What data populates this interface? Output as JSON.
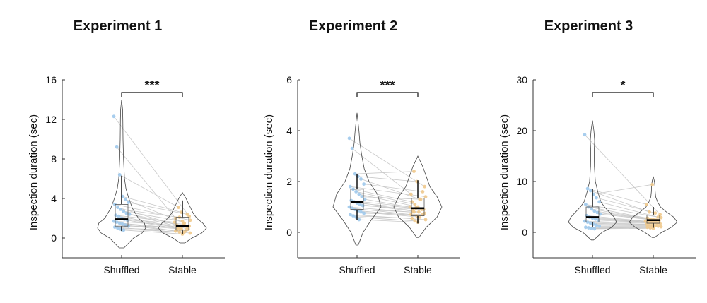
{
  "colors": {
    "shuffled": "#9ec9ec",
    "stable": "#f0c98c",
    "pair_line": "#c9c9c9",
    "axis": "#333333",
    "violin": "#444444",
    "median": "#000000"
  },
  "chart_data": [
    {
      "type": "violin-box-paired",
      "title": "Experiment 1",
      "ylabel": "Inspection duration (sec)",
      "xlabel": "",
      "categories": [
        "Shuffled",
        "Stable"
      ],
      "ylim": [
        -2,
        16
      ],
      "yticks": [
        0,
        4,
        8,
        12,
        16
      ],
      "grid": false,
      "significance": "***",
      "groups": [
        {
          "name": "Shuffled",
          "violin_range": [
            -1,
            14
          ],
          "violin_density": [
            [
              -1,
              0.1
            ],
            [
              0,
              0.5
            ],
            [
              0.5,
              0.85
            ],
            [
              1,
              1
            ],
            [
              1.5,
              0.95
            ],
            [
              2,
              0.7
            ],
            [
              3,
              0.45
            ],
            [
              4,
              0.3
            ],
            [
              5,
              0.18
            ],
            [
              6,
              0.12
            ],
            [
              8,
              0.08
            ],
            [
              10,
              0.06
            ],
            [
              12,
              0.05
            ],
            [
              13,
              0.04
            ],
            [
              14,
              0.0
            ]
          ],
          "box": {
            "q1": 1.2,
            "median": 1.9,
            "q3": 3.4,
            "whisker_low": 0.7,
            "whisker_high": 6.3
          },
          "points": [
            12.3,
            9.2,
            6.4,
            4.2,
            3.9,
            3.6,
            3.4,
            3.1,
            2.9,
            2.7,
            2.5,
            2.4,
            2.3,
            2.2,
            2.0,
            1.9,
            1.8,
            1.7,
            1.6,
            1.5,
            1.4,
            1.3,
            1.2,
            1.1,
            1.0,
            0.9,
            0.8
          ]
        },
        {
          "name": "Stable",
          "violin_range": [
            -0.5,
            4.6
          ],
          "violin_density": [
            [
              -0.5,
              0.1
            ],
            [
              0,
              0.4
            ],
            [
              0.5,
              0.8
            ],
            [
              1,
              1
            ],
            [
              1.5,
              0.85
            ],
            [
              2,
              0.6
            ],
            [
              2.5,
              0.45
            ],
            [
              3,
              0.35
            ],
            [
              3.5,
              0.25
            ],
            [
              4,
              0.15
            ],
            [
              4.6,
              0.0
            ]
          ],
          "box": {
            "q1": 0.8,
            "median": 1.2,
            "q3": 2.1,
            "whisker_low": 0.4,
            "whisker_high": 3.8
          },
          "points": [
            2.2,
            2.0,
            3.1,
            2.6,
            1.5,
            2.4,
            1.8,
            1.3,
            2.1,
            1.7,
            1.2,
            0.9,
            1.6,
            1.1,
            1.0,
            1.4,
            0.8,
            1.2,
            0.7,
            1.0,
            0.9,
            0.6,
            1.1,
            0.5,
            0.8,
            0.6,
            0.4
          ]
        }
      ]
    },
    {
      "type": "violin-box-paired",
      "title": "Experiment 2",
      "ylabel": "Inspection duration (sec)",
      "xlabel": "",
      "categories": [
        "Shuffled",
        "Stable"
      ],
      "ylim": [
        -1,
        6
      ],
      "yticks": [
        0,
        2,
        4,
        6
      ],
      "grid": false,
      "significance": "***",
      "groups": [
        {
          "name": "Shuffled",
          "violin_range": [
            -0.5,
            4.7
          ],
          "violin_density": [
            [
              -0.5,
              0.05
            ],
            [
              0,
              0.25
            ],
            [
              0.5,
              0.6
            ],
            [
              1,
              1
            ],
            [
              1.5,
              0.85
            ],
            [
              2,
              0.5
            ],
            [
              2.5,
              0.3
            ],
            [
              3,
              0.2
            ],
            [
              3.5,
              0.12
            ],
            [
              4,
              0.08
            ],
            [
              4.7,
              0.0
            ]
          ],
          "box": {
            "q1": 0.9,
            "median": 1.2,
            "q3": 1.7,
            "whisker_low": 0.5,
            "whisker_high": 2.3
          },
          "points": [
            3.7,
            3.3,
            2.3,
            2.2,
            2.1,
            1.9,
            1.8,
            1.7,
            1.6,
            1.5,
            1.4,
            1.3,
            1.25,
            1.2,
            1.15,
            1.1,
            1.05,
            1.0,
            0.95,
            0.9,
            0.85,
            0.8,
            0.75,
            0.7,
            0.65,
            0.6,
            0.5
          ]
        },
        {
          "name": "Stable",
          "violin_range": [
            -0.2,
            3.0
          ],
          "violin_density": [
            [
              -0.2,
              0.05
            ],
            [
              0.2,
              0.35
            ],
            [
              0.6,
              0.8
            ],
            [
              1,
              1
            ],
            [
              1.4,
              0.8
            ],
            [
              1.8,
              0.5
            ],
            [
              2.2,
              0.35
            ],
            [
              2.6,
              0.2
            ],
            [
              3.0,
              0.0
            ]
          ],
          "box": {
            "q1": 0.65,
            "median": 0.95,
            "q3": 1.35,
            "whisker_low": 0.35,
            "whisker_high": 2.05
          },
          "points": [
            1.8,
            1.5,
            2.4,
            2.0,
            1.3,
            1.6,
            1.4,
            1.2,
            1.1,
            1.0,
            1.3,
            0.9,
            1.0,
            0.85,
            0.95,
            0.8,
            0.9,
            0.75,
            0.7,
            0.8,
            0.65,
            0.6,
            0.7,
            0.5,
            0.55,
            0.45,
            0.4
          ]
        }
      ]
    },
    {
      "type": "violin-box-paired",
      "title": "Experiment 3",
      "ylabel": "Inspection duration (sec)",
      "xlabel": "",
      "categories": [
        "Shuffled",
        "Stable"
      ],
      "ylim": [
        -5,
        30
      ],
      "yticks": [
        0,
        10,
        20,
        30
      ],
      "grid": false,
      "significance": "*",
      "groups": [
        {
          "name": "Shuffled",
          "violin_range": [
            -1.5,
            22
          ],
          "violin_density": [
            [
              -1.5,
              0.05
            ],
            [
              0,
              0.4
            ],
            [
              1,
              0.8
            ],
            [
              2,
              1
            ],
            [
              3,
              0.9
            ],
            [
              4,
              0.7
            ],
            [
              5,
              0.5
            ],
            [
              6,
              0.35
            ],
            [
              8,
              0.22
            ],
            [
              10,
              0.12
            ],
            [
              13,
              0.08
            ],
            [
              16,
              0.07
            ],
            [
              18,
              0.09
            ],
            [
              20,
              0.06
            ],
            [
              22,
              0.0
            ]
          ],
          "box": {
            "q1": 2.0,
            "median": 3.0,
            "q3": 5.0,
            "whisker_low": 1.0,
            "whisker_high": 8.5
          },
          "points": [
            19.2,
            8.6,
            8.2,
            7.5,
            6.8,
            6.0,
            5.5,
            5.0,
            4.6,
            4.2,
            3.9,
            3.6,
            3.3,
            3.0,
            2.8,
            2.6,
            2.4,
            2.2,
            2.0,
            1.8,
            1.6,
            1.4,
            1.2,
            1.0,
            0.9,
            0.8,
            0.7
          ]
        },
        {
          "name": "Stable",
          "violin_range": [
            -1,
            11
          ],
          "violin_density": [
            [
              -1,
              0.05
            ],
            [
              0,
              0.35
            ],
            [
              1,
              0.75
            ],
            [
              2,
              1
            ],
            [
              3,
              0.85
            ],
            [
              4,
              0.55
            ],
            [
              5,
              0.3
            ],
            [
              6,
              0.18
            ],
            [
              7,
              0.1
            ],
            [
              8,
              0.08
            ],
            [
              9,
              0.07
            ],
            [
              10,
              0.05
            ],
            [
              11,
              0.0
            ]
          ],
          "box": {
            "q1": 1.8,
            "median": 2.4,
            "q3": 3.4,
            "whisker_low": 0.9,
            "whisker_high": 5.0
          },
          "points": [
            3.5,
            5.5,
            4.0,
            9.4,
            3.8,
            3.0,
            2.9,
            2.8,
            2.6,
            2.5,
            2.4,
            2.3,
            2.2,
            2.1,
            2.0,
            1.9,
            1.8,
            1.7,
            1.6,
            1.5,
            1.4,
            1.3,
            1.2,
            1.1,
            1.0,
            0.9,
            0.8
          ]
        }
      ]
    }
  ]
}
